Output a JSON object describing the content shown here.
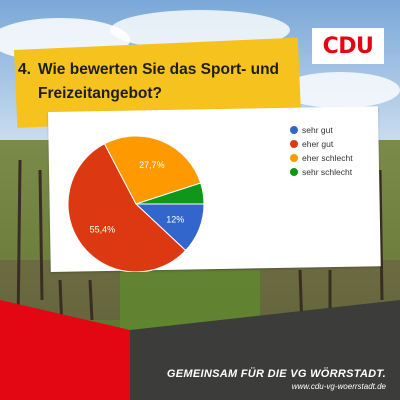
{
  "brand": {
    "logo_text": "CDU"
  },
  "question": {
    "number": "4.",
    "text": "Wie bewerten Sie das Sport- und Freizeitangebot?"
  },
  "footer": {
    "slogan": "GEMEINSAM FÜR DIE VG WÖRRSTADT.",
    "url": "www.cdu-vg-woerrstadt.de"
  },
  "colors": {
    "brand_red": "#e30613",
    "accent_yellow": "#f6c21d",
    "dark_gray": "#3c3c3b"
  },
  "chart_data": {
    "type": "pie",
    "categories": [
      "sehr gut",
      "eher gut",
      "eher schlecht",
      "sehr schlecht"
    ],
    "values": [
      12,
      55.4,
      27.7,
      5
    ],
    "labels": [
      "12%",
      "55,4%",
      "27,7%",
      ""
    ],
    "colors": [
      "#3366cc",
      "#dc3912",
      "#ff9900",
      "#109618"
    ],
    "legend_position": "right"
  }
}
